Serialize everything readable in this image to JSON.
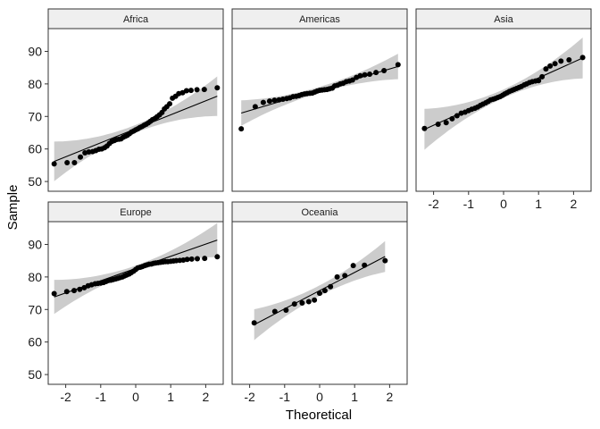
{
  "chart_data": {
    "type": "scatter",
    "subtype": "qq-plot-facets",
    "xlabel": "Theoretical",
    "ylabel": "Sample",
    "xlim": [
      -2.5,
      2.5
    ],
    "ylim": [
      47,
      97
    ],
    "x_ticks": [
      -2,
      -1,
      0,
      1,
      2
    ],
    "y_ticks": [
      50,
      60,
      70,
      80,
      90
    ],
    "x_tick_labels": [
      "-2",
      "-1",
      "0",
      "1",
      "2"
    ],
    "y_tick_labels": [
      "50",
      "60",
      "70",
      "80",
      "90"
    ],
    "grid": false,
    "confidence_band": true,
    "colors": {
      "points": "#000000",
      "line": "#000000",
      "band": "#cccccc",
      "strip": "#efefef",
      "panel_border": "#333333"
    },
    "panels": [
      {
        "name": "Africa",
        "line": {
          "intercept": 66.2,
          "slope": 4.3
        },
        "band_half_width": {
          "center": 1.2,
          "spread": 3.6
        },
        "x": [
          -2.33,
          -1.96,
          -1.75,
          -1.58,
          -1.45,
          -1.34,
          -1.23,
          -1.14,
          -1.05,
          -0.97,
          -0.89,
          -0.82,
          -0.75,
          -0.68,
          -0.61,
          -0.55,
          -0.48,
          -0.42,
          -0.36,
          -0.3,
          -0.24,
          -0.18,
          -0.12,
          -0.06,
          0.0,
          0.06,
          0.12,
          0.18,
          0.24,
          0.3,
          0.36,
          0.42,
          0.48,
          0.55,
          0.61,
          0.68,
          0.75,
          0.82,
          0.89,
          0.97,
          1.05,
          1.14,
          1.23,
          1.34,
          1.45,
          1.58,
          1.75,
          1.96,
          2.33
        ],
        "y": [
          55.4,
          55.8,
          55.8,
          57.5,
          58.8,
          59.1,
          59.2,
          59.5,
          59.9,
          60.0,
          60.4,
          60.9,
          61.7,
          62.3,
          62.6,
          62.9,
          63.0,
          63.1,
          63.6,
          63.9,
          64.2,
          64.7,
          65.2,
          65.5,
          65.9,
          66.2,
          66.6,
          66.9,
          67.3,
          67.6,
          68.0,
          68.5,
          69.0,
          69.4,
          69.9,
          70.5,
          71.2,
          72.3,
          73.0,
          73.9,
          75.6,
          76.2,
          77.0,
          77.3,
          77.9,
          78.0,
          78.2,
          78.3,
          78.8
        ]
      },
      {
        "name": "Americas",
        "line": {
          "intercept": 78.2,
          "slope": 3.2
        },
        "band_half_width": {
          "center": 0.9,
          "spread": 2.4
        },
        "x": [
          -2.24,
          -1.84,
          -1.61,
          -1.43,
          -1.29,
          -1.16,
          -1.05,
          -0.94,
          -0.85,
          -0.76,
          -0.67,
          -0.59,
          -0.51,
          -0.43,
          -0.36,
          -0.28,
          -0.21,
          -0.14,
          -0.07,
          0.0,
          0.07,
          0.14,
          0.21,
          0.28,
          0.36,
          0.43,
          0.51,
          0.59,
          0.67,
          0.76,
          0.85,
          0.94,
          1.05,
          1.16,
          1.29,
          1.43,
          1.61,
          1.84,
          2.24
        ],
        "y": [
          66.2,
          73.0,
          74.3,
          74.7,
          75.0,
          75.1,
          75.3,
          75.5,
          75.7,
          76.1,
          76.2,
          76.4,
          76.7,
          76.9,
          77.0,
          77.1,
          77.2,
          77.5,
          77.8,
          78.0,
          78.1,
          78.2,
          78.3,
          78.5,
          78.7,
          79.4,
          79.6,
          80.0,
          80.2,
          80.7,
          80.9,
          81.2,
          82.0,
          82.5,
          82.8,
          83.0,
          83.5,
          84.1,
          85.9
        ]
      },
      {
        "name": "Asia",
        "line": {
          "intercept": 77.0,
          "slope": 4.85
        },
        "band_half_width": {
          "center": 1.3,
          "spread": 3.9
        },
        "x": [
          -2.26,
          -1.87,
          -1.64,
          -1.47,
          -1.33,
          -1.21,
          -1.1,
          -1.0,
          -0.91,
          -0.82,
          -0.74,
          -0.66,
          -0.59,
          -0.51,
          -0.44,
          -0.37,
          -0.3,
          -0.24,
          -0.17,
          -0.1,
          -0.03,
          0.03,
          0.1,
          0.17,
          0.24,
          0.3,
          0.37,
          0.44,
          0.51,
          0.59,
          0.66,
          0.74,
          0.82,
          0.91,
          1.0,
          1.1,
          1.21,
          1.33,
          1.47,
          1.64,
          1.87,
          2.26
        ],
        "y": [
          66.3,
          67.6,
          68.1,
          69.3,
          70.2,
          71.0,
          71.3,
          71.8,
          72.2,
          72.5,
          72.9,
          73.4,
          73.8,
          74.2,
          74.6,
          75.1,
          75.3,
          75.5,
          75.8,
          76.1,
          76.5,
          76.9,
          77.3,
          77.7,
          78.0,
          78.3,
          78.6,
          78.9,
          79.2,
          79.7,
          80.0,
          80.4,
          80.7,
          80.9,
          81.0,
          82.2,
          84.6,
          85.5,
          86.2,
          87.0,
          87.4,
          88.1
        ]
      },
      {
        "name": "Europe",
        "line": {
          "intercept": 82.6,
          "slope": 3.75
        },
        "band_half_width": {
          "center": 0.9,
          "spread": 3.2
        },
        "x": [
          -2.33,
          -1.97,
          -1.76,
          -1.6,
          -1.47,
          -1.36,
          -1.26,
          -1.16,
          -1.08,
          -1.0,
          -0.92,
          -0.85,
          -0.78,
          -0.71,
          -0.64,
          -0.57,
          -0.51,
          -0.45,
          -0.38,
          -0.32,
          -0.26,
          -0.19,
          -0.13,
          -0.06,
          0.0,
          0.06,
          0.13,
          0.19,
          0.26,
          0.32,
          0.38,
          0.45,
          0.51,
          0.57,
          0.64,
          0.71,
          0.78,
          0.85,
          0.92,
          1.0,
          1.08,
          1.16,
          1.26,
          1.36,
          1.47,
          1.6,
          1.76,
          1.97,
          2.33
        ],
        "y": [
          74.9,
          75.5,
          75.8,
          76.2,
          76.7,
          77.3,
          77.6,
          77.9,
          78.0,
          78.1,
          78.3,
          78.6,
          78.9,
          79.0,
          79.2,
          79.4,
          79.6,
          79.8,
          80.0,
          80.3,
          80.6,
          80.9,
          81.3,
          81.8,
          82.3,
          82.8,
          83.0,
          83.2,
          83.5,
          83.7,
          83.9,
          84.0,
          84.2,
          84.3,
          84.4,
          84.5,
          84.6,
          84.7,
          84.7,
          84.8,
          84.9,
          85.0,
          85.1,
          85.2,
          85.4,
          85.5,
          85.6,
          85.7,
          86.2
        ]
      },
      {
        "name": "Oceania",
        "line": {
          "intercept": 75.8,
          "slope": 5.6
        },
        "band_half_width": {
          "center": 1.6,
          "spread": 3.6
        },
        "x": [
          -1.87,
          -1.28,
          -0.96,
          -0.72,
          -0.5,
          -0.31,
          -0.15,
          0.0,
          0.15,
          0.31,
          0.5,
          0.72,
          0.96,
          1.28,
          1.87
        ],
        "y": [
          65.9,
          69.4,
          69.8,
          71.7,
          72.0,
          72.4,
          72.9,
          75.0,
          75.8,
          77.0,
          80.0,
          80.4,
          83.5,
          83.6,
          85.0
        ]
      }
    ]
  }
}
